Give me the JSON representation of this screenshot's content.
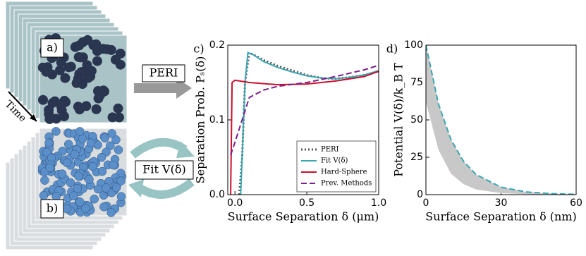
{
  "schematic": {
    "label_a": "a)",
    "label_b": "b)",
    "time": "Time",
    "peri": "PERI",
    "fit": "Fit V(δ)"
  },
  "chart_data": [
    {
      "type": "line",
      "panel": "c)",
      "xlabel": "Surface Separation δ (μm)",
      "ylabel": "Separation Prob. Pₛ(δ)",
      "xlim": [
        -0.05,
        1.0
      ],
      "ylim": [
        0,
        0.2
      ],
      "xticks": [
        {
          "value": 0,
          "label": "0.0"
        },
        0.5,
        {
          "value": 1,
          "label": "1.0"
        }
      ],
      "yticks": [
        {
          "value": 0,
          "label": "0.0"
        },
        0.1,
        0.2
      ],
      "legend": "lower right",
      "series": [
        {
          "name": "PERI",
          "color": "#555555",
          "dash": "dotted",
          "x": [
            0.03,
            0.05,
            0.07,
            0.1,
            0.2,
            0.3,
            0.4,
            0.5,
            0.6,
            0.7,
            0.8,
            0.9,
            1.0
          ],
          "values": [
            0,
            0.05,
            0.15,
            0.19,
            0.18,
            0.172,
            0.166,
            0.16,
            0.156,
            0.155,
            0.157,
            0.16,
            0.165
          ]
        },
        {
          "name": "Fit V(δ)",
          "color": "#3aa6b0",
          "dash": "solid",
          "x": [
            0.04,
            0.07,
            0.09,
            0.12,
            0.2,
            0.3,
            0.4,
            0.5,
            0.6,
            0.7,
            0.8,
            0.9,
            1.0
          ],
          "values": [
            0,
            0.15,
            0.19,
            0.188,
            0.178,
            0.17,
            0.164,
            0.159,
            0.156,
            0.155,
            0.157,
            0.16,
            0.166
          ]
        },
        {
          "name": "Hard-Sphere",
          "color": "#c8102e",
          "dash": "solid",
          "x": [
            -0.03,
            -0.02,
            0.0,
            0.1,
            0.3,
            0.5,
            0.7,
            0.9,
            1.0
          ],
          "values": [
            0,
            0.15,
            0.153,
            0.15,
            0.147,
            0.148,
            0.152,
            0.158,
            0.165
          ]
        },
        {
          "name": "Prev. Methods",
          "color": "#7b1f8a",
          "dash": "dashed",
          "x": [
            -0.03,
            0.0,
            0.05,
            0.1,
            0.2,
            0.3,
            0.5,
            0.7,
            0.9,
            1.0
          ],
          "values": [
            0.053,
            0.07,
            0.1,
            0.13,
            0.14,
            0.145,
            0.15,
            0.158,
            0.167,
            0.173
          ]
        }
      ]
    },
    {
      "type": "line",
      "panel": "d)",
      "xlabel": "Surface Separation δ (nm)",
      "ylabel": "Potential V(δ)/k_B T",
      "xlim": [
        0,
        60
      ],
      "ylim": [
        0,
        100
      ],
      "xticks": [
        0,
        30,
        60
      ],
      "yticks": [
        0,
        25,
        50,
        75,
        100
      ],
      "band_color": "#c8c8c8",
      "series": [
        {
          "color": "#3aa6b0",
          "dash": "dashed",
          "x": [
            0,
            5,
            10,
            15,
            20,
            30,
            40,
            50,
            60
          ],
          "values": [
            100,
            60.7,
            36.8,
            22.3,
            13.5,
            5,
            1.8,
            0.7,
            0.2
          ],
          "band_lower": [
            62,
            30,
            14,
            7,
            3.5,
            1,
            0.3,
            0.1,
            0
          ]
        }
      ]
    }
  ]
}
